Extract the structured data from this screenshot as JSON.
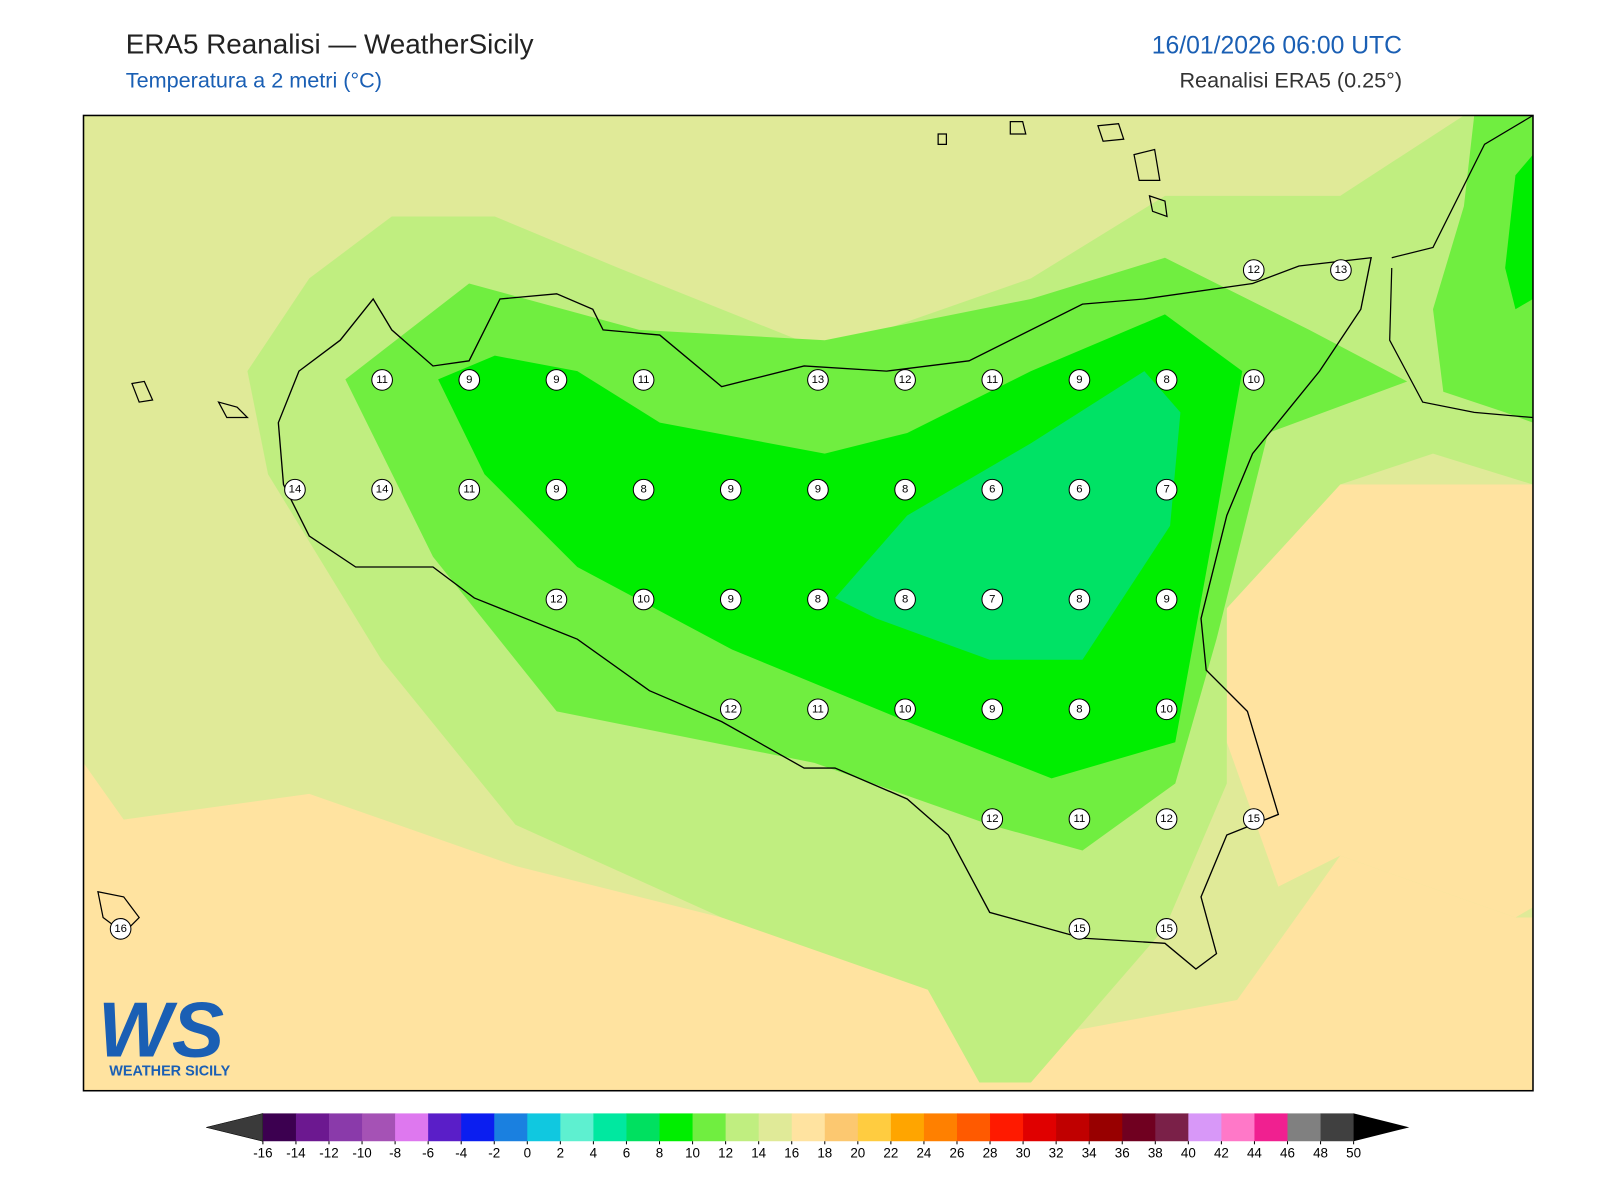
{
  "header": {
    "title": "ERA5 Reanalisi — WeatherSicily",
    "subtitle": "Temperatura a 2 metri (°C)",
    "datetime": "16/01/2026 06:00 UTC",
    "source": "Reanalisi ERA5 (0.25°)"
  },
  "stations": [
    12,
    13,
    11,
    9,
    9,
    11,
    13,
    12,
    11,
    9,
    8,
    10,
    14,
    14,
    11,
    9,
    8,
    9,
    9,
    8,
    6,
    6,
    7,
    12,
    10,
    9,
    8,
    8,
    7,
    8,
    9,
    12,
    11,
    10,
    9,
    8,
    10,
    12,
    11,
    12,
    15,
    16,
    15,
    15
  ],
  "colorbar": {
    "ticks": [
      -16,
      -14,
      -12,
      -10,
      -8,
      -6,
      -4,
      -2,
      0,
      2,
      4,
      6,
      8,
      10,
      12,
      14,
      16,
      18,
      20,
      22,
      24,
      26,
      28,
      30,
      32,
      34,
      36,
      38,
      40,
      42,
      44,
      46,
      48,
      50
    ],
    "colors": [
      "#3c0050",
      "#6c1890",
      "#8a3aaa",
      "#a552b5",
      "#de78ef",
      "#5a1ec8",
      "#0b1ef0",
      "#1a80e0",
      "#10c8e0",
      "#5ef0d0",
      "#00e8a0",
      "#00e060",
      "#00ee00",
      "#70ee40",
      "#c0ee80",
      "#e0ea98",
      "#ffe3a0",
      "#fcc870",
      "#ffcc40",
      "#ffa500",
      "#ff8000",
      "#ff5a00",
      "#ff1a00",
      "#e00000",
      "#c00000",
      "#980000",
      "#700020",
      "#7a2048",
      "#d898f8",
      "#ff78c8",
      "#f02090",
      "#808080",
      "#404040"
    ],
    "under_color": "#3a3a3a",
    "over_color": "#000000"
  },
  "logo": {
    "mark": "WS",
    "name": "WEATHER SICILY"
  }
}
